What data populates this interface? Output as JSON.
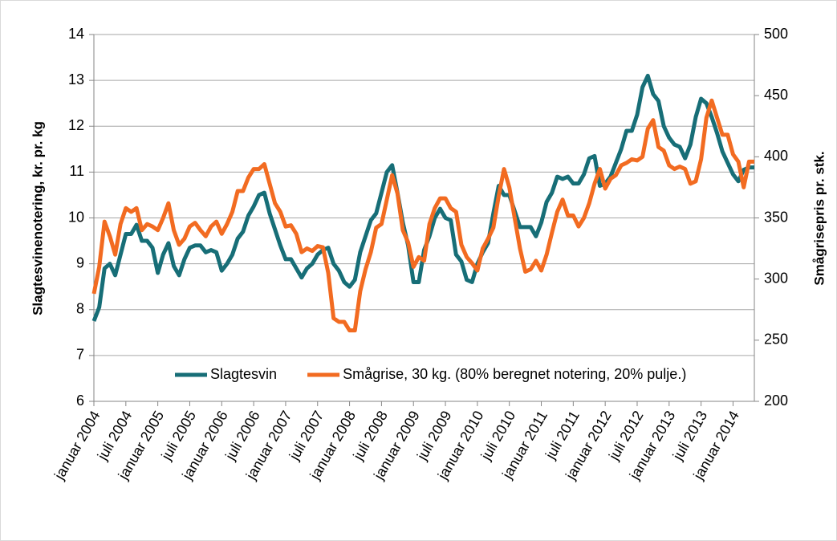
{
  "chart_data": {
    "type": "line",
    "categories": [
      "januar 2004",
      null,
      null,
      null,
      null,
      null,
      "juli 2004",
      null,
      null,
      null,
      null,
      null,
      "januar 2005",
      null,
      null,
      null,
      null,
      null,
      "juli 2005",
      null,
      null,
      null,
      null,
      null,
      "januar 2006",
      null,
      null,
      null,
      null,
      null,
      "juli 2006",
      null,
      null,
      null,
      null,
      null,
      "januar 2007",
      null,
      null,
      null,
      null,
      null,
      "juli 2007",
      null,
      null,
      null,
      null,
      null,
      "januar 2008",
      null,
      null,
      null,
      null,
      null,
      "juli 2008",
      null,
      null,
      null,
      null,
      null,
      "januar 2009",
      null,
      null,
      null,
      null,
      null,
      "juli 2009",
      null,
      null,
      null,
      null,
      null,
      "januar 2010",
      null,
      null,
      null,
      null,
      null,
      "juli 2010",
      null,
      null,
      null,
      null,
      null,
      "januar 2011",
      null,
      null,
      null,
      null,
      null,
      "juli 2011",
      null,
      null,
      null,
      null,
      null,
      "januar 2012",
      null,
      null,
      null,
      null,
      null,
      "juli 2012",
      null,
      null,
      null,
      null,
      null,
      "januar 2013",
      null,
      null,
      null,
      null,
      null,
      "juli 2013",
      null,
      null,
      null,
      null,
      null,
      "januar 2014",
      null,
      null,
      null,
      null
    ],
    "series": [
      {
        "name": "Slagtesvin",
        "color": "#176e77",
        "axis": "y",
        "values": [
          7.75,
          8.05,
          8.9,
          9.0,
          8.75,
          9.2,
          9.65,
          9.65,
          9.85,
          9.5,
          9.5,
          9.35,
          8.8,
          9.2,
          9.45,
          8.95,
          8.75,
          9.1,
          9.35,
          9.4,
          9.4,
          9.25,
          9.3,
          9.25,
          8.85,
          9.0,
          9.2,
          9.55,
          9.7,
          10.05,
          10.25,
          10.5,
          10.55,
          10.1,
          9.75,
          9.4,
          9.1,
          9.1,
          8.9,
          8.7,
          8.9,
          9.0,
          9.2,
          9.3,
          9.35,
          9.0,
          8.85,
          8.6,
          8.5,
          8.65,
          9.25,
          9.6,
          9.95,
          10.1,
          10.55,
          11.0,
          11.15,
          10.55,
          9.9,
          9.4,
          8.6,
          8.6,
          9.3,
          9.6,
          10.0,
          10.2,
          10.0,
          9.95,
          9.2,
          9.05,
          8.65,
          8.6,
          9.0,
          9.25,
          9.45,
          10.1,
          10.7,
          10.5,
          10.5,
          10.15,
          9.8,
          9.8,
          9.8,
          9.6,
          9.9,
          10.35,
          10.55,
          10.9,
          10.85,
          10.9,
          10.75,
          10.75,
          10.95,
          11.3,
          11.35,
          10.7,
          10.75,
          10.9,
          11.2,
          11.5,
          11.9,
          11.9,
          12.25,
          12.85,
          13.1,
          12.7,
          12.55,
          12.0,
          11.75,
          11.6,
          11.55,
          11.3,
          11.6,
          12.2,
          12.6,
          12.5,
          12.2,
          11.85,
          11.45,
          11.2,
          10.95,
          10.8,
          11.05,
          11.1,
          11.1
        ]
      },
      {
        "name": "Smågrise, 30 kg. (80% beregnet notering, 20% pulje.)",
        "color": "#f26b21",
        "axis": "y2",
        "values": [
          288,
          310,
          347,
          335,
          320,
          345,
          358,
          355,
          358,
          340,
          345,
          343,
          340,
          350,
          362,
          340,
          328,
          333,
          343,
          346,
          340,
          335,
          343,
          347,
          337,
          345,
          355,
          372,
          372,
          383,
          390,
          390,
          394,
          378,
          362,
          355,
          343,
          344,
          337,
          322,
          325,
          323,
          327,
          326,
          305,
          268,
          265,
          265,
          258,
          258,
          290,
          308,
          322,
          342,
          345,
          365,
          385,
          370,
          340,
          330,
          310,
          318,
          315,
          345,
          358,
          366,
          366,
          358,
          355,
          328,
          318,
          313,
          307,
          325,
          333,
          342,
          368,
          390,
          375,
          350,
          325,
          306,
          308,
          315,
          307,
          320,
          338,
          355,
          365,
          352,
          352,
          343,
          350,
          362,
          378,
          390,
          374,
          382,
          385,
          393,
          395,
          398,
          397,
          400,
          423,
          430,
          408,
          405,
          393,
          390,
          392,
          390,
          378,
          380,
          398,
          432,
          446,
          432,
          418,
          418,
          402,
          396,
          375,
          396,
          396
        ]
      }
    ],
    "ylabel": "Slagtesvinenotering, kr. pr. kg",
    "y2label": "Smågrisepris pr. stk.",
    "ylim": [
      6,
      14
    ],
    "yticks": [
      6,
      7,
      8,
      9,
      10,
      11,
      12,
      13,
      14
    ],
    "y2lim": [
      200,
      500
    ],
    "y2ticks": [
      200,
      250,
      300,
      350,
      400,
      450,
      500
    ],
    "grid": true,
    "legend": "bottom"
  }
}
